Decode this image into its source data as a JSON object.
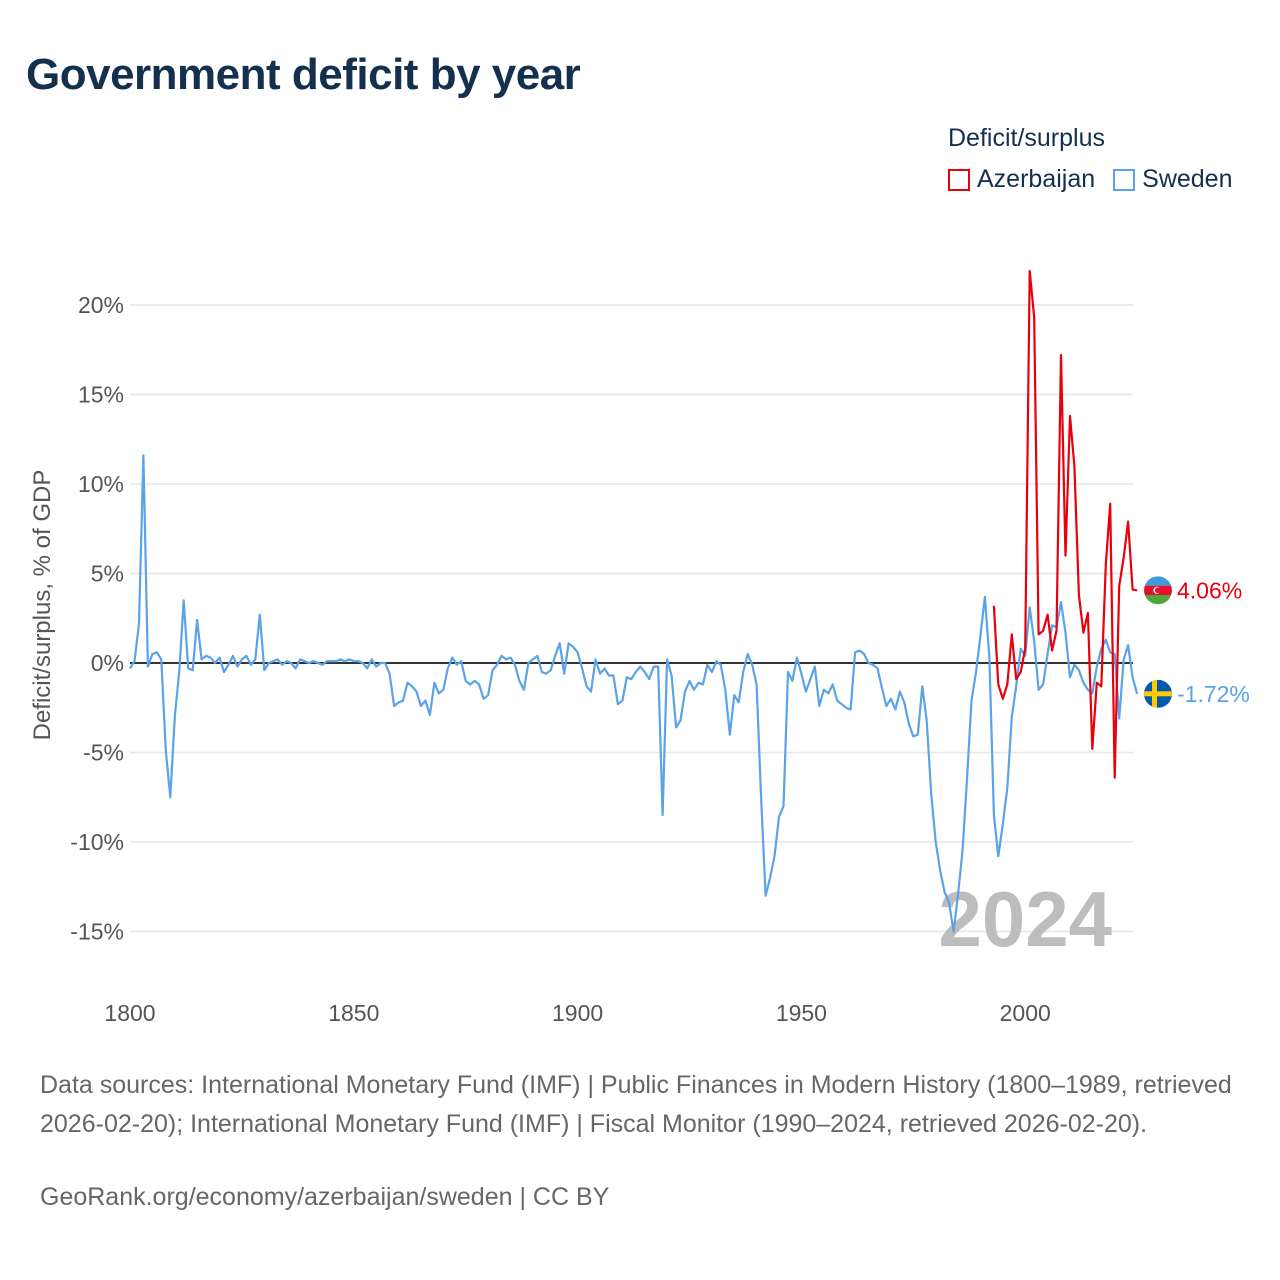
{
  "title": "Government deficit by year",
  "legend": {
    "title": "Deficit/surplus",
    "items": [
      {
        "name": "Azerbaijan",
        "color": "#e8000b"
      },
      {
        "name": "Sweden",
        "color": "#5aa3e8"
      }
    ]
  },
  "chart_data": {
    "type": "line",
    "title": "Government deficit by year",
    "xlabel": "",
    "ylabel": "Deficit/surplus, % of GDP",
    "xlim": [
      1800,
      2024
    ],
    "ylim": [
      -17,
      22
    ],
    "x_ticks": [
      1800,
      1850,
      1900,
      1950,
      2000
    ],
    "x_tick_labels": [
      "1800",
      "1850",
      "1900",
      "1950",
      "2000"
    ],
    "y_ticks": [
      -15,
      -10,
      -5,
      0,
      5,
      10,
      15,
      20
    ],
    "y_tick_labels": [
      "-15%",
      "-10%",
      "-5%",
      "0%",
      "5%",
      "10%",
      "15%",
      "20%"
    ],
    "zero_line": true,
    "grid": "horizontal",
    "current_year": "2024",
    "series": [
      {
        "name": "Sweden",
        "color": "#5aa3e8",
        "end_label": "-1.72%",
        "end_value": -1.72,
        "flag": "sweden-flag",
        "points": [
          [
            1800,
            -0.3
          ],
          [
            1801,
            0.1
          ],
          [
            1802,
            2.2
          ],
          [
            1803,
            11.6
          ],
          [
            1804,
            -0.2
          ],
          [
            1805,
            0.5
          ],
          [
            1806,
            0.6
          ],
          [
            1807,
            0.2
          ],
          [
            1808,
            -4.9
          ],
          [
            1809,
            -7.5
          ],
          [
            1810,
            -3.0
          ],
          [
            1811,
            -0.5
          ],
          [
            1812,
            3.5
          ],
          [
            1813,
            -0.3
          ],
          [
            1814,
            -0.4
          ],
          [
            1815,
            2.4
          ],
          [
            1816,
            0.2
          ],
          [
            1817,
            0.4
          ],
          [
            1818,
            0.3
          ],
          [
            1819,
            0.0
          ],
          [
            1820,
            0.3
          ],
          [
            1821,
            -0.5
          ],
          [
            1822,
            -0.1
          ],
          [
            1823,
            0.4
          ],
          [
            1824,
            -0.2
          ],
          [
            1825,
            0.2
          ],
          [
            1826,
            0.4
          ],
          [
            1827,
            -0.1
          ],
          [
            1828,
            0.2
          ],
          [
            1829,
            2.7
          ],
          [
            1830,
            -0.4
          ],
          [
            1831,
            0.0
          ],
          [
            1832,
            0.1
          ],
          [
            1833,
            0.2
          ],
          [
            1834,
            -0.1
          ],
          [
            1835,
            0.1
          ],
          [
            1836,
            0.0
          ],
          [
            1837,
            -0.3
          ],
          [
            1838,
            0.2
          ],
          [
            1839,
            0.1
          ],
          [
            1840,
            0.0
          ],
          [
            1841,
            0.1
          ],
          [
            1842,
            0.0
          ],
          [
            1843,
            -0.1
          ],
          [
            1844,
            0.1
          ],
          [
            1845,
            0.1
          ],
          [
            1846,
            0.1
          ],
          [
            1847,
            0.2
          ],
          [
            1848,
            0.1
          ],
          [
            1849,
            0.2
          ],
          [
            1850,
            0.1
          ],
          [
            1851,
            0.1
          ],
          [
            1852,
            0.0
          ],
          [
            1853,
            -0.3
          ],
          [
            1854,
            0.2
          ],
          [
            1855,
            -0.2
          ],
          [
            1856,
            0.0
          ],
          [
            1857,
            0.0
          ],
          [
            1858,
            -0.6
          ],
          [
            1859,
            -2.4
          ],
          [
            1860,
            -2.2
          ],
          [
            1861,
            -2.1
          ],
          [
            1862,
            -1.1
          ],
          [
            1863,
            -1.3
          ],
          [
            1864,
            -1.6
          ],
          [
            1865,
            -2.4
          ],
          [
            1866,
            -2.1
          ],
          [
            1867,
            -2.9
          ],
          [
            1868,
            -1.1
          ],
          [
            1869,
            -1.7
          ],
          [
            1870,
            -1.5
          ],
          [
            1871,
            -0.3
          ],
          [
            1872,
            0.3
          ],
          [
            1873,
            -0.1
          ],
          [
            1874,
            0.1
          ],
          [
            1875,
            -1.0
          ],
          [
            1876,
            -1.2
          ],
          [
            1877,
            -1.0
          ],
          [
            1878,
            -1.2
          ],
          [
            1879,
            -2.0
          ],
          [
            1880,
            -1.8
          ],
          [
            1881,
            -0.4
          ],
          [
            1882,
            -0.1
          ],
          [
            1883,
            0.4
          ],
          [
            1884,
            0.2
          ],
          [
            1885,
            0.3
          ],
          [
            1886,
            -0.1
          ],
          [
            1887,
            -1.0
          ],
          [
            1888,
            -1.5
          ],
          [
            1889,
            0.0
          ],
          [
            1890,
            0.2
          ],
          [
            1891,
            0.4
          ],
          [
            1892,
            -0.5
          ],
          [
            1893,
            -0.6
          ],
          [
            1894,
            -0.4
          ],
          [
            1895,
            0.4
          ],
          [
            1896,
            1.1
          ],
          [
            1897,
            -0.6
          ],
          [
            1898,
            1.1
          ],
          [
            1899,
            0.9
          ],
          [
            1900,
            0.6
          ],
          [
            1901,
            -0.3
          ],
          [
            1902,
            -1.3
          ],
          [
            1903,
            -1.6
          ],
          [
            1904,
            0.2
          ],
          [
            1905,
            -0.6
          ],
          [
            1906,
            -0.3
          ],
          [
            1907,
            -0.7
          ],
          [
            1908,
            -0.7
          ],
          [
            1909,
            -2.3
          ],
          [
            1910,
            -2.1
          ],
          [
            1911,
            -0.8
          ],
          [
            1912,
            -0.9
          ],
          [
            1913,
            -0.5
          ],
          [
            1914,
            -0.2
          ],
          [
            1915,
            -0.5
          ],
          [
            1916,
            -0.9
          ],
          [
            1917,
            -0.2
          ],
          [
            1918,
            -0.2
          ],
          [
            1919,
            -8.5
          ],
          [
            1920,
            0.2
          ],
          [
            1921,
            -0.7
          ],
          [
            1922,
            -3.6
          ],
          [
            1923,
            -3.2
          ],
          [
            1924,
            -1.6
          ],
          [
            1925,
            -1.0
          ],
          [
            1926,
            -1.5
          ],
          [
            1927,
            -1.1
          ],
          [
            1928,
            -1.2
          ],
          [
            1929,
            -0.1
          ],
          [
            1930,
            -0.5
          ],
          [
            1931,
            0.1
          ],
          [
            1932,
            -0.1
          ],
          [
            1933,
            -1.5
          ],
          [
            1934,
            -4.0
          ],
          [
            1935,
            -1.8
          ],
          [
            1936,
            -2.2
          ],
          [
            1937,
            -0.5
          ],
          [
            1938,
            0.5
          ],
          [
            1939,
            -0.1
          ],
          [
            1940,
            -1.2
          ],
          [
            1941,
            -7.5
          ],
          [
            1942,
            -13.0
          ],
          [
            1943,
            -12.0
          ],
          [
            1944,
            -10.8
          ],
          [
            1945,
            -8.6
          ],
          [
            1946,
            -8.0
          ],
          [
            1947,
            -0.5
          ],
          [
            1948,
            -1.0
          ],
          [
            1949,
            0.3
          ],
          [
            1950,
            -0.6
          ],
          [
            1951,
            -1.6
          ],
          [
            1952,
            -0.9
          ],
          [
            1953,
            -0.2
          ],
          [
            1954,
            -2.4
          ],
          [
            1955,
            -1.5
          ],
          [
            1956,
            -1.7
          ],
          [
            1957,
            -1.2
          ],
          [
            1958,
            -2.1
          ],
          [
            1959,
            -2.3
          ],
          [
            1960,
            -2.5
          ],
          [
            1961,
            -2.6
          ],
          [
            1962,
            0.6
          ],
          [
            1963,
            0.7
          ],
          [
            1964,
            0.5
          ],
          [
            1965,
            0.0
          ],
          [
            1966,
            -0.1
          ],
          [
            1967,
            -0.3
          ],
          [
            1968,
            -1.4
          ],
          [
            1969,
            -2.4
          ],
          [
            1970,
            -2.0
          ],
          [
            1971,
            -2.6
          ],
          [
            1972,
            -1.6
          ],
          [
            1973,
            -2.2
          ],
          [
            1974,
            -3.4
          ],
          [
            1975,
            -4.1
          ],
          [
            1976,
            -4.0
          ],
          [
            1977,
            -1.3
          ],
          [
            1978,
            -3.2
          ],
          [
            1979,
            -7.3
          ],
          [
            1980,
            -10.0
          ],
          [
            1981,
            -11.6
          ],
          [
            1982,
            -12.8
          ],
          [
            1983,
            -13.4
          ],
          [
            1984,
            -15.0
          ],
          [
            1985,
            -12.9
          ],
          [
            1986,
            -10.5
          ],
          [
            1987,
            -6.5
          ],
          [
            1988,
            -2.1
          ],
          [
            1989,
            -0.5
          ],
          [
            1990,
            1.5
          ],
          [
            1991,
            3.7
          ],
          [
            1992,
            0.3
          ],
          [
            1993,
            -8.5
          ],
          [
            1994,
            -10.8
          ],
          [
            1995,
            -9.0
          ],
          [
            1996,
            -7.0
          ],
          [
            1997,
            -3.0
          ],
          [
            1998,
            -1.3
          ],
          [
            1999,
            0.8
          ],
          [
            2000,
            0.4
          ],
          [
            2001,
            3.1
          ],
          [
            2002,
            1.2
          ],
          [
            2003,
            -1.5
          ],
          [
            2004,
            -1.2
          ],
          [
            2005,
            0.5
          ],
          [
            2006,
            2.1
          ],
          [
            2007,
            2.0
          ],
          [
            2008,
            3.4
          ],
          [
            2009,
            1.7
          ],
          [
            2010,
            -0.8
          ],
          [
            2011,
            -0.1
          ],
          [
            2012,
            -0.4
          ],
          [
            2013,
            -1.1
          ],
          [
            2014,
            -1.5
          ],
          [
            2015,
            -1.7
          ],
          [
            2016,
            -0.2
          ],
          [
            2017,
            0.8
          ],
          [
            2018,
            1.3
          ],
          [
            2019,
            0.6
          ],
          [
            2020,
            0.5
          ],
          [
            2021,
            -3.1
          ],
          [
            2022,
            0.2
          ],
          [
            2023,
            1.0
          ],
          [
            2024,
            -0.8
          ],
          [
            2025,
            -1.72
          ]
        ]
      },
      {
        "name": "Azerbaijan",
        "color": "#e8000b",
        "end_label": "4.06%",
        "end_value": 4.06,
        "flag": "azerbaijan-flag",
        "points": [
          [
            1993,
            3.2
          ],
          [
            1994,
            -1.2
          ],
          [
            1995,
            -2.0
          ],
          [
            1996,
            -1.2
          ],
          [
            1997,
            1.6
          ],
          [
            1998,
            -0.9
          ],
          [
            1999,
            -0.5
          ],
          [
            2000,
            0.8
          ],
          [
            2001,
            21.9
          ],
          [
            2002,
            19.3
          ],
          [
            2003,
            1.6
          ],
          [
            2004,
            1.8
          ],
          [
            2005,
            2.7
          ],
          [
            2006,
            0.7
          ],
          [
            2007,
            1.8
          ],
          [
            2008,
            17.2
          ],
          [
            2009,
            6.0
          ],
          [
            2010,
            13.8
          ],
          [
            2011,
            11.0
          ],
          [
            2012,
            3.8
          ],
          [
            2013,
            1.7
          ],
          [
            2014,
            2.8
          ],
          [
            2015,
            -4.8
          ],
          [
            2016,
            -1.1
          ],
          [
            2017,
            -1.3
          ],
          [
            2018,
            5.5
          ],
          [
            2019,
            8.9
          ],
          [
            2020,
            -6.4
          ],
          [
            2021,
            4.3
          ],
          [
            2022,
            5.9
          ],
          [
            2023,
            7.9
          ],
          [
            2024,
            4.1
          ],
          [
            2025,
            4.06
          ]
        ]
      }
    ]
  },
  "sources": "Data sources: International Monetary Fund (IMF) | Public Finances in Modern History (1800–1989, retrieved 2026-02-20); International Monetary Fund (IMF) | Fiscal Monitor (1990–2024, retrieved 2026-02-20).",
  "credit": "GeoRank.org/economy/azerbaijan/sweden | CC BY"
}
